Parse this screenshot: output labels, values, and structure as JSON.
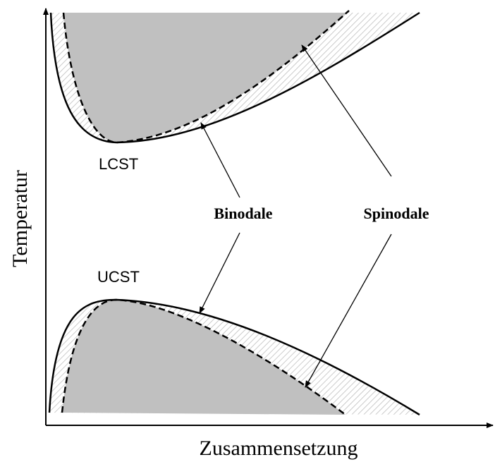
{
  "labels": {
    "y_axis": "Temperatur",
    "x_axis": "Zusammensetzung",
    "lcst": "LCST",
    "ucst": "UCST",
    "binodale": "Binodale",
    "spinodale": "Spinodale"
  }
}
